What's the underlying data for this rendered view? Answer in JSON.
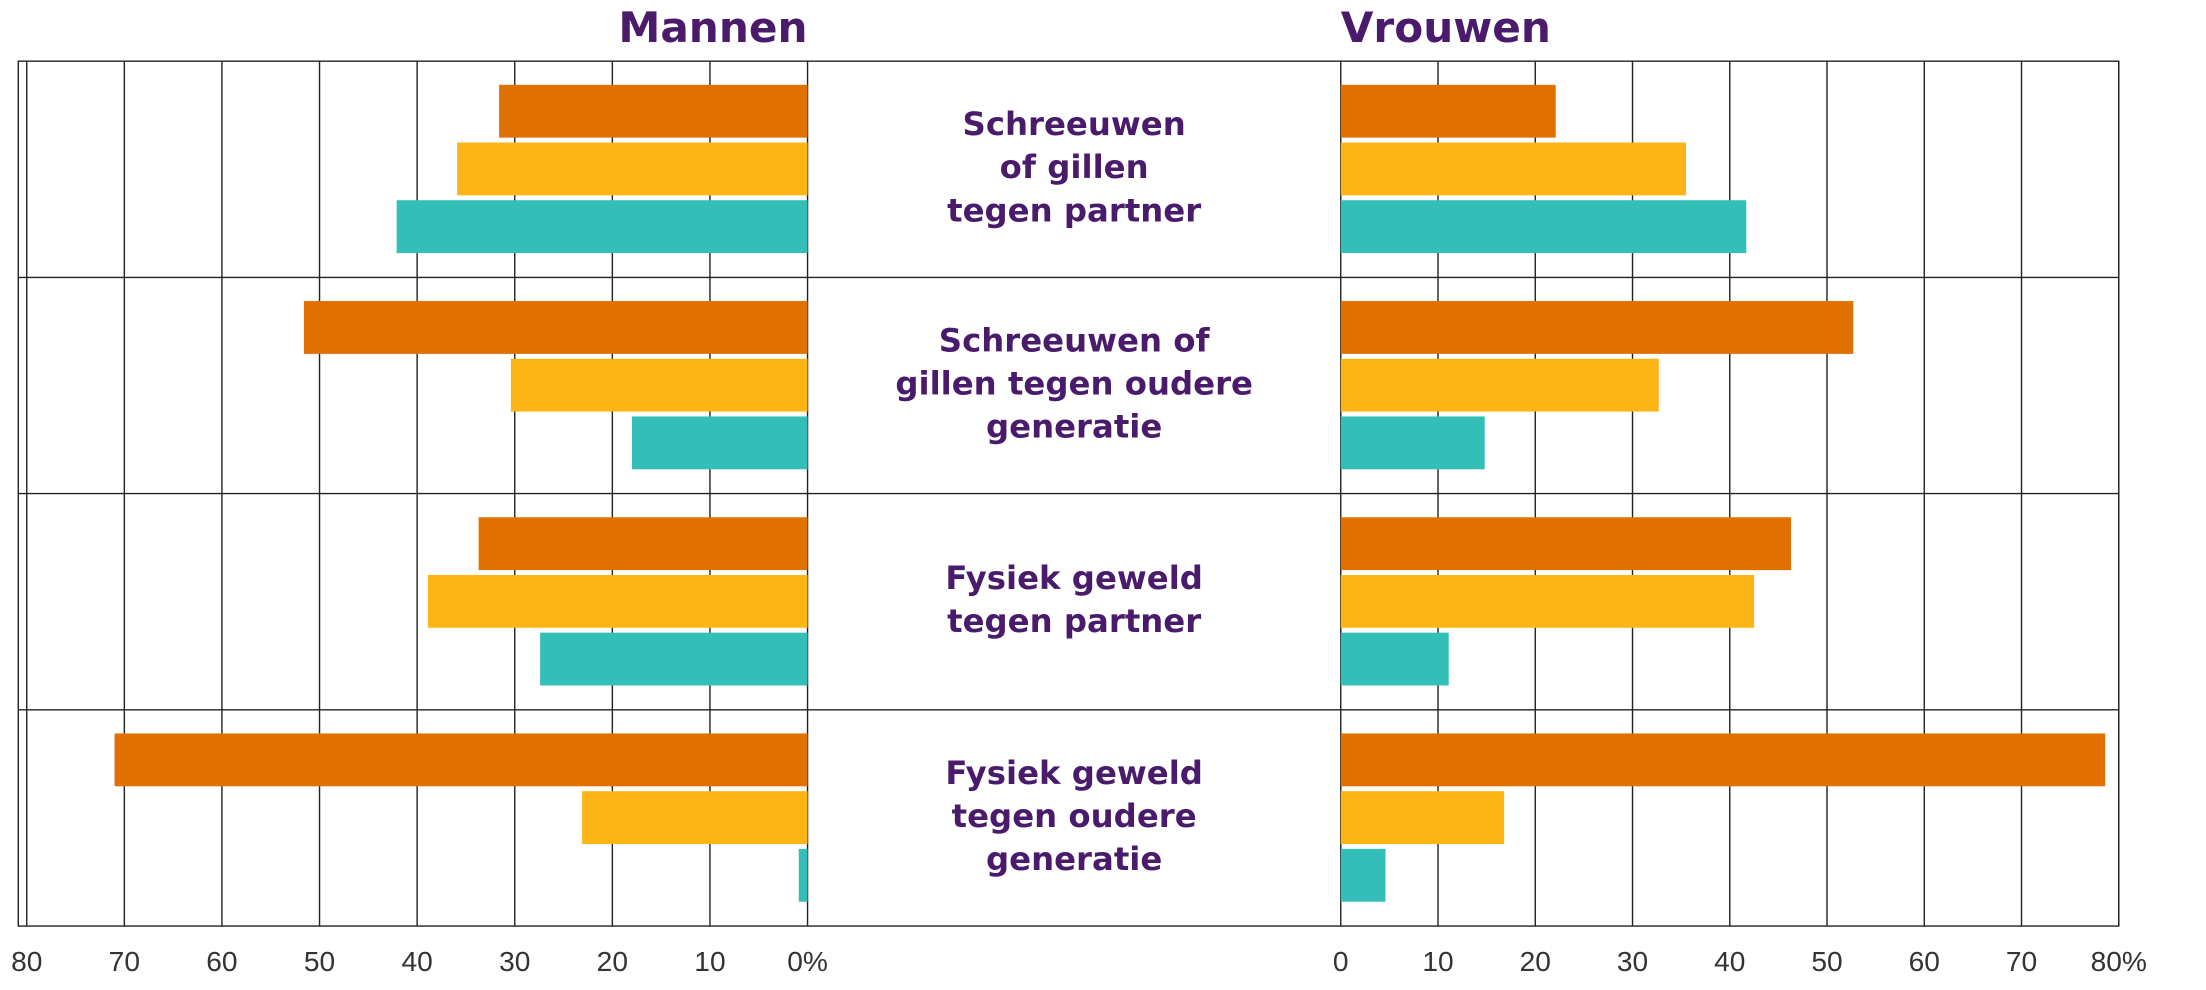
{
  "chart_data": [
    {
      "type": "bar",
      "orientation": "horizontal",
      "title": "Mannen",
      "categories": [
        "Schreeuwen\nof gillen\ntegen partner",
        "Schreeuwen of\ngillen tegen oudere\ngeneratie",
        "Fysiek geweld\ntegen partner",
        "Fysiek geweld\ntegen oudere\ngeneratie"
      ],
      "series": [
        {
          "color": "#e07000",
          "values": [
            31.6,
            51.6,
            33.7,
            71.0
          ]
        },
        {
          "color": "#fdb515",
          "values": [
            35.9,
            30.4,
            38.9,
            23.1
          ]
        },
        {
          "color": "#33bfb7",
          "values": [
            42.1,
            18.0,
            27.4,
            0.9
          ]
        }
      ],
      "xlim": [
        80,
        0
      ],
      "xticks": [
        80,
        70,
        60,
        50,
        40,
        30,
        20,
        10,
        {
          "value": 0,
          "label": "0%"
        }
      ],
      "grid": true
    },
    {
      "type": "bar",
      "orientation": "horizontal",
      "title": "Vrouwen",
      "series": [
        {
          "color": "#e07000",
          "values": [
            22.1,
            52.7,
            46.3,
            78.6
          ]
        },
        {
          "color": "#fdb515",
          "values": [
            35.5,
            32.7,
            42.5,
            16.8
          ]
        },
        {
          "color": "#33bfb7",
          "values": [
            41.7,
            14.8,
            11.1,
            4.6
          ]
        }
      ],
      "xlim": [
        0,
        80
      ],
      "xticks": [
        0,
        10,
        20,
        30,
        40,
        50,
        60,
        70,
        {
          "value": 80,
          "label": "80%"
        }
      ],
      "grid": true
    }
  ]
}
